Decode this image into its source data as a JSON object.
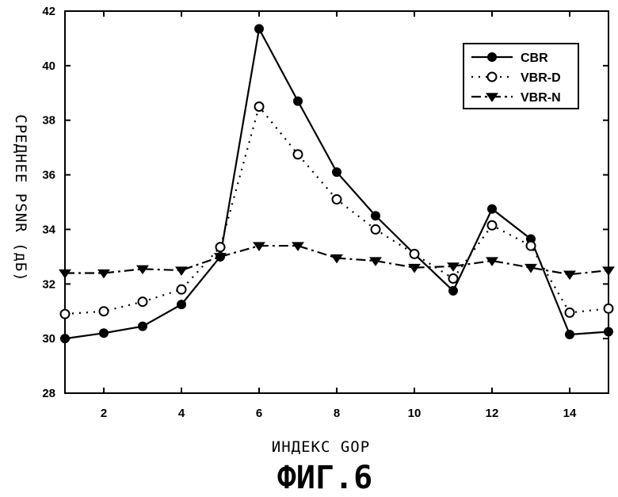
{
  "chart_data": {
    "type": "line",
    "xlabel": "ИНДЕКС GOP",
    "ylabel": "СРЕДНЕЕ PSNR (дБ)",
    "caption": "ФИГ.6",
    "xlim": [
      1,
      15
    ],
    "ylim": [
      28,
      42
    ],
    "x_ticks": [
      2,
      4,
      6,
      8,
      10,
      12,
      14
    ],
    "y_ticks": [
      28,
      30,
      32,
      34,
      36,
      38,
      40,
      42
    ],
    "grid": false,
    "legend_position": "top-right",
    "x": [
      1,
      2,
      3,
      4,
      5,
      6,
      7,
      8,
      9,
      10,
      11,
      12,
      13,
      14,
      15
    ],
    "series": [
      {
        "name": "CBR",
        "style": "solid",
        "marker": "filled-circle",
        "color": "#000000",
        "values": [
          30.0,
          30.2,
          30.45,
          31.25,
          33.0,
          41.35,
          38.7,
          36.1,
          34.5,
          33.1,
          31.75,
          34.75,
          33.65,
          30.15,
          30.25
        ]
      },
      {
        "name": "VBR-D",
        "style": "dotted",
        "marker": "open-circle",
        "color": "#000000",
        "values": [
          30.9,
          31.0,
          31.35,
          31.8,
          33.35,
          38.5,
          36.75,
          35.1,
          34.0,
          33.1,
          32.2,
          34.15,
          33.4,
          30.95,
          31.1
        ]
      },
      {
        "name": "VBR-N",
        "style": "dash-dot",
        "marker": "filled-triangle-down",
        "color": "#000000",
        "values": [
          32.4,
          32.4,
          32.55,
          32.5,
          33.0,
          33.4,
          33.4,
          32.95,
          32.85,
          32.6,
          32.65,
          32.85,
          32.6,
          32.35,
          32.5
        ]
      }
    ]
  }
}
